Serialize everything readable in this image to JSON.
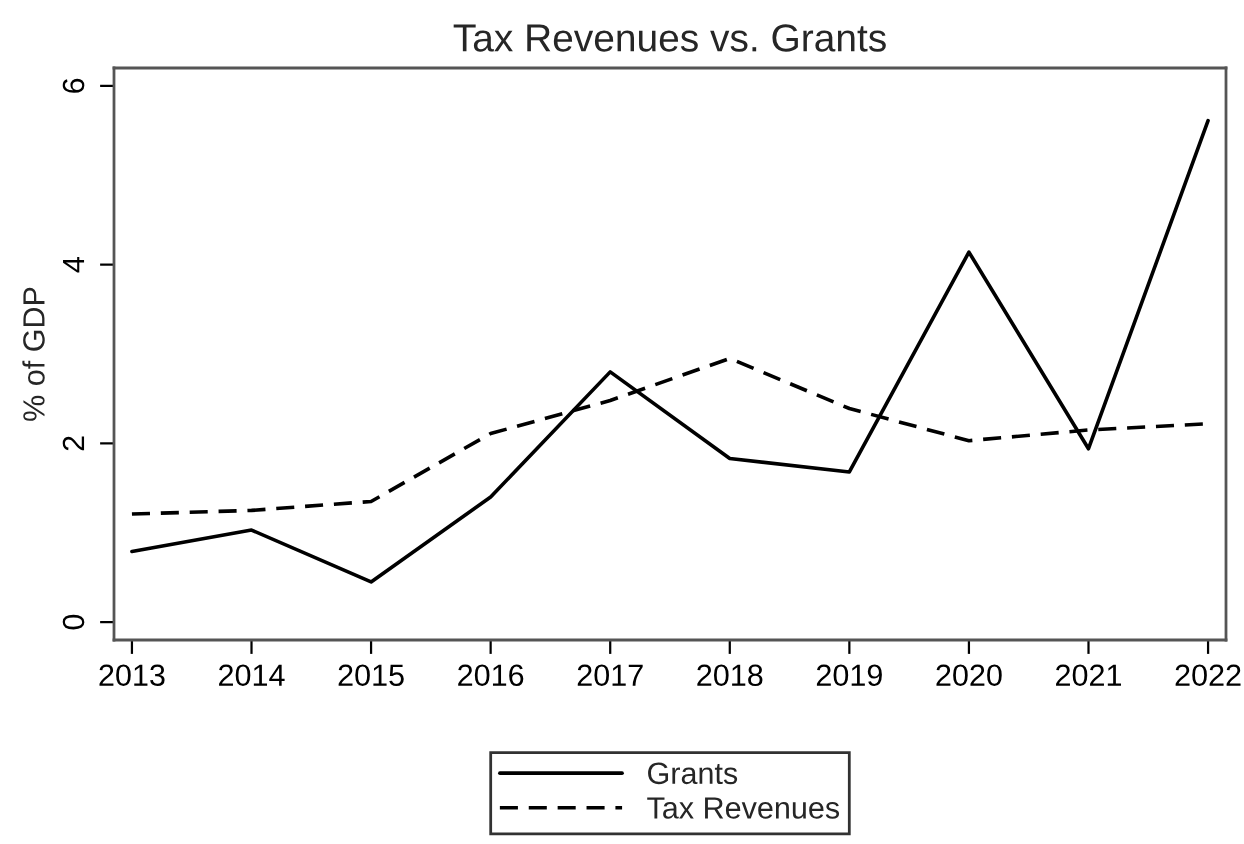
{
  "chart_data": {
    "type": "line",
    "title": "Tax Revenues vs. Grants",
    "ylabel": "% of GDP",
    "x": [
      2013,
      2014,
      2015,
      2016,
      2017,
      2018,
      2019,
      2020,
      2021,
      2022
    ],
    "series": [
      {
        "name": "Grants",
        "color": "#000000",
        "line_style": "solid",
        "values": [
          0.79,
          1.03,
          0.45,
          1.4,
          2.8,
          1.83,
          1.68,
          4.14,
          1.94,
          5.61
        ]
      },
      {
        "name": "Tax Revenues",
        "color": "#000000",
        "line_style": "dashed",
        "values": [
          1.21,
          1.25,
          1.35,
          2.11,
          2.48,
          2.95,
          2.39,
          2.03,
          2.15,
          2.22
        ]
      }
    ],
    "xlim": [
      2012.85,
      2022.15
    ],
    "xticks": [
      2013,
      2014,
      2015,
      2016,
      2017,
      2018,
      2019,
      2020,
      2021,
      2022
    ],
    "ylim": [
      -0.2,
      6.2
    ],
    "yticks": [
      0,
      2,
      4,
      6
    ],
    "grid": false,
    "legend": "bottom"
  }
}
